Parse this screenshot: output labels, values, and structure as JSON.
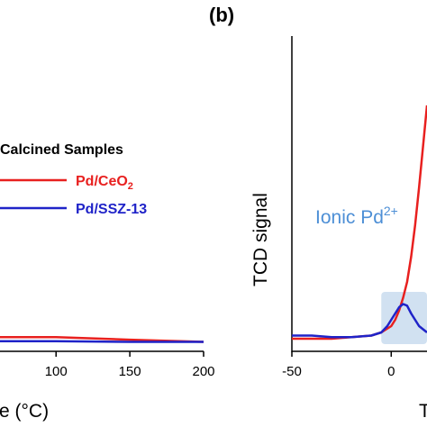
{
  "chart_data": [
    {
      "type": "line",
      "xlabel": "re (°C)",
      "xticks": [
        "100",
        "150",
        "200"
      ],
      "xlim": [
        62,
        200
      ],
      "ylim": [
        0,
        1
      ],
      "legend": {
        "title": "Calcined Samples",
        "placement": "center-right",
        "entries": [
          {
            "name": "Pd/CeO",
            "subscript": "2",
            "color": "#e8201f"
          },
          {
            "name": "Pd/SSZ-13",
            "subscript": "",
            "color": "#1f23c8"
          }
        ]
      },
      "series": [
        {
          "name": "Pd/CeO2",
          "color": "#e8201f",
          "x": [
            62,
            100,
            150,
            200
          ],
          "y": [
            0.045,
            0.045,
            0.037,
            0.03
          ]
        },
        {
          "name": "Pd/SSZ-13",
          "color": "#1f23c8",
          "x": [
            62,
            100,
            150,
            200
          ],
          "y": [
            0.032,
            0.032,
            0.03,
            0.03
          ]
        }
      ]
    },
    {
      "type": "line",
      "panel_label": "(b)",
      "ylabel": "TCD signal",
      "xlabel": "T",
      "xticks": [
        "-50",
        "0"
      ],
      "xlim": [
        -50,
        18
      ],
      "ylim": [
        0,
        1
      ],
      "annotation": {
        "text": "Ionic Pd",
        "superscript": "2+",
        "color": "#4d8fd6"
      },
      "highlight": {
        "x": [
          -5,
          18
        ],
        "y": [
          0,
          0.2
        ],
        "color": "#c9dcef"
      },
      "series": [
        {
          "name": "Pd/CeO2",
          "color": "#e8201f",
          "x": [
            -50,
            -40,
            -30,
            -20,
            -10,
            -5,
            0,
            2,
            4,
            6,
            8,
            10,
            12,
            14,
            16,
            18
          ],
          "y": [
            0.04,
            0.04,
            0.04,
            0.045,
            0.05,
            0.06,
            0.08,
            0.1,
            0.13,
            0.17,
            0.22,
            0.3,
            0.4,
            0.52,
            0.65,
            0.78
          ]
        },
        {
          "name": "Pd/SSZ-13",
          "color": "#1f23c8",
          "x": [
            -50,
            -40,
            -30,
            -20,
            -10,
            -5,
            -2,
            0,
            2,
            4,
            6,
            8,
            10,
            12,
            14,
            16,
            18
          ],
          "y": [
            0.05,
            0.05,
            0.045,
            0.045,
            0.05,
            0.06,
            0.08,
            0.1,
            0.12,
            0.14,
            0.15,
            0.145,
            0.12,
            0.1,
            0.08,
            0.07,
            0.06
          ]
        }
      ]
    }
  ]
}
